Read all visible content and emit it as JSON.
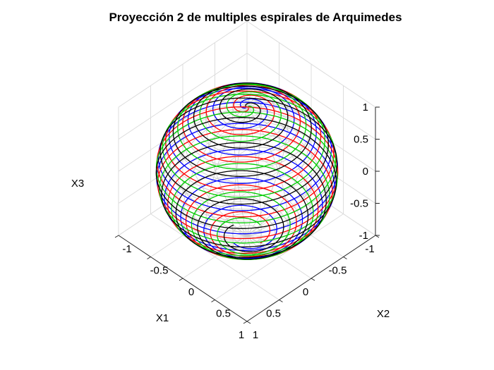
{
  "chart_data": {
    "type": "line3d",
    "title": "Proyección 2 de multiples espirales de Arquimedes",
    "xlabel": "X1",
    "ylabel": "X2",
    "zlabel": "X3",
    "xlim": [
      -1,
      1
    ],
    "ylim": [
      -1,
      1
    ],
    "zlim": [
      -1,
      1
    ],
    "x_ticks": [
      "-1",
      "-0.5",
      "0",
      "0.5",
      "1"
    ],
    "y_ticks": [
      "-1",
      "-0.5",
      "0",
      "0.5",
      "1"
    ],
    "z_ticks": [
      "-1",
      "-0.5",
      "0",
      "0.5",
      "1"
    ],
    "grid": true,
    "sphere": {
      "radius": 1,
      "color": "#cccccc",
      "meridians": 20,
      "parallels": 20
    },
    "spiral": {
      "pole": [
        0,
        0,
        1
      ],
      "start_polar_angle_deg": 168,
      "end_polar_angle_deg": 1,
      "turns": 9
    },
    "series": [
      {
        "color": "#0000ff",
        "phase_deg": 0
      },
      {
        "color": "#ff0000",
        "phase_deg": 90
      },
      {
        "color": "#00cc00",
        "phase_deg": 180
      },
      {
        "color": "#000000",
        "phase_deg": 270
      }
    ],
    "colors": {
      "grid": "#dcdcdc",
      "axis": "#262626",
      "background": "#ffffff"
    }
  }
}
